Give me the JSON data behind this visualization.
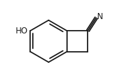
{
  "bg_color": "#ffffff",
  "line_color": "#1a1a1a",
  "line_width": 1.3,
  "ho_label": "HO",
  "cn_label": "N",
  "font_size": 8.5
}
